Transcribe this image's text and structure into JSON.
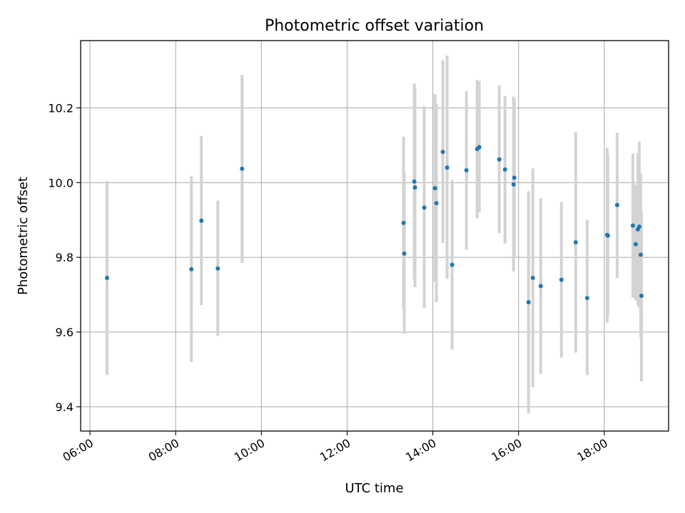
{
  "chart_data": {
    "type": "scatter",
    "title": "Photometric offset variation",
    "xlabel": "UTC time",
    "ylabel": "Photometric offset",
    "x_ticks": [
      "06:00",
      "08:00",
      "10:00",
      "12:00",
      "14:00",
      "16:00",
      "18:00"
    ],
    "y_ticks": [
      "9.4",
      "9.6",
      "9.8",
      "10.0",
      "10.2"
    ],
    "xlim": [
      "05:47",
      "19:30"
    ],
    "ylim": [
      9.335,
      10.38
    ],
    "grid": true,
    "legend": "none",
    "colors": {
      "point": "#1f77b4",
      "errorbar": "#d3d3d3",
      "grid": "#b0b0b0",
      "axis": "#000000"
    },
    "points": [
      {
        "x": "06:24",
        "y": 9.745,
        "err_low": 9.485,
        "err_high": 10.005
      },
      {
        "x": "08:22",
        "y": 9.768,
        "err_low": 9.52,
        "err_high": 10.017
      },
      {
        "x": "08:36",
        "y": 9.898,
        "err_low": 9.672,
        "err_high": 10.125
      },
      {
        "x": "08:59",
        "y": 9.77,
        "err_low": 9.59,
        "err_high": 9.952
      },
      {
        "x": "09:33",
        "y": 10.037,
        "err_low": 9.785,
        "err_high": 10.288
      },
      {
        "x": "13:19",
        "y": 9.892,
        "err_low": 9.662,
        "err_high": 10.123
      },
      {
        "x": "13:20",
        "y": 9.81,
        "err_low": 9.595,
        "err_high": 10.025
      },
      {
        "x": "13:34",
        "y": 10.003,
        "err_low": 9.74,
        "err_high": 10.265
      },
      {
        "x": "13:35",
        "y": 9.987,
        "err_low": 9.72,
        "err_high": 10.255
      },
      {
        "x": "13:48",
        "y": 9.933,
        "err_low": 9.665,
        "err_high": 10.205
      },
      {
        "x": "14:03",
        "y": 9.985,
        "err_low": 9.735,
        "err_high": 10.237
      },
      {
        "x": "14:05",
        "y": 9.945,
        "err_low": 9.68,
        "err_high": 10.21
      },
      {
        "x": "14:14",
        "y": 10.082,
        "err_low": 9.838,
        "err_high": 10.327
      },
      {
        "x": "14:20",
        "y": 10.04,
        "err_low": 9.743,
        "err_high": 10.34
      },
      {
        "x": "14:27",
        "y": 9.78,
        "err_low": 9.553,
        "err_high": 10.007
      },
      {
        "x": "14:47",
        "y": 10.033,
        "err_low": 9.82,
        "err_high": 10.245
      },
      {
        "x": "15:02",
        "y": 10.09,
        "err_low": 9.905,
        "err_high": 10.275
      },
      {
        "x": "15:05",
        "y": 10.095,
        "err_low": 9.92,
        "err_high": 10.272
      },
      {
        "x": "15:33",
        "y": 10.062,
        "err_low": 9.865,
        "err_high": 10.26
      },
      {
        "x": "15:41",
        "y": 10.035,
        "err_low": 9.837,
        "err_high": 10.232
      },
      {
        "x": "15:53",
        "y": 9.995,
        "err_low": 9.762,
        "err_high": 10.23
      },
      {
        "x": "15:54",
        "y": 10.013,
        "err_low": 9.8,
        "err_high": 10.222
      },
      {
        "x": "16:14",
        "y": 9.68,
        "err_low": 9.383,
        "err_high": 9.977
      },
      {
        "x": "16:20",
        "y": 9.745,
        "err_low": 9.452,
        "err_high": 10.038
      },
      {
        "x": "16:31",
        "y": 9.723,
        "err_low": 9.488,
        "err_high": 9.958
      },
      {
        "x": "17:00",
        "y": 9.74,
        "err_low": 9.532,
        "err_high": 9.948
      },
      {
        "x": "17:20",
        "y": 9.84,
        "err_low": 9.545,
        "err_high": 10.135
      },
      {
        "x": "17:36",
        "y": 9.691,
        "err_low": 9.485,
        "err_high": 9.9
      },
      {
        "x": "18:04",
        "y": 9.86,
        "err_low": 9.625,
        "err_high": 10.093
      },
      {
        "x": "18:05",
        "y": 9.858,
        "err_low": 9.645,
        "err_high": 10.073
      },
      {
        "x": "18:18",
        "y": 9.94,
        "err_low": 9.745,
        "err_high": 10.133
      },
      {
        "x": "18:40",
        "y": 9.885,
        "err_low": 9.692,
        "err_high": 10.078
      },
      {
        "x": "18:44",
        "y": 9.835,
        "err_low": 9.685,
        "err_high": 9.995
      },
      {
        "x": "18:47",
        "y": 9.875,
        "err_low": 9.672,
        "err_high": 10.08
      },
      {
        "x": "18:49",
        "y": 9.882,
        "err_low": 9.665,
        "err_high": 10.11
      },
      {
        "x": "18:51",
        "y": 9.807,
        "err_low": 9.585,
        "err_high": 10.025
      },
      {
        "x": "18:52",
        "y": 9.697,
        "err_low": 9.468,
        "err_high": 9.925
      }
    ]
  }
}
